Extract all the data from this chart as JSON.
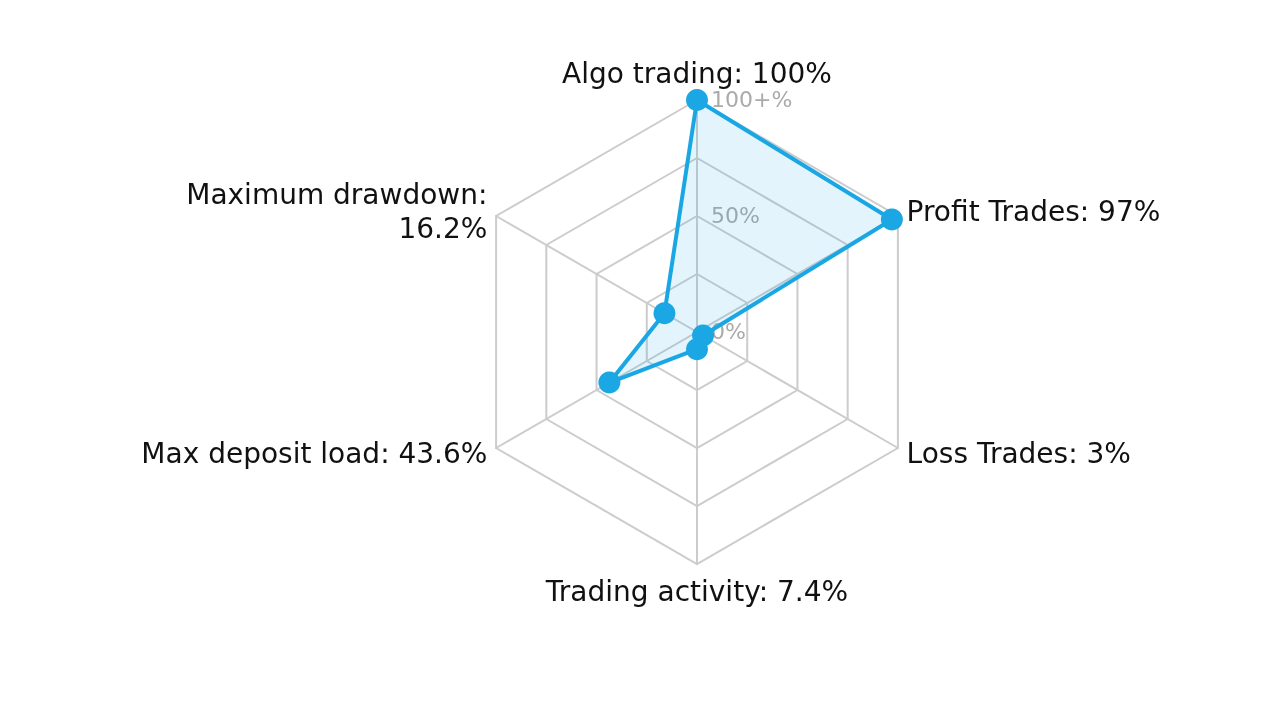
{
  "chart_data": {
    "type": "radar",
    "categories": [
      "Algo trading: 100%",
      "Profit Trades: 97%",
      "Loss Trades: 3%",
      "Trading activity: 7.4%",
      "Max deposit load: 43.6%",
      "Maximum drawdown:\n16.2%"
    ],
    "series": [
      {
        "color": "#1aa7e4",
        "values": [
          100,
          97,
          3,
          7.4,
          43.6,
          16.2
        ]
      }
    ],
    "ylim": [
      0,
      100
    ],
    "yticks": [
      {
        "value": 0,
        "label": "0%"
      },
      {
        "value": 50,
        "label": "50%"
      },
      {
        "value": 100,
        "label": "100+%"
      }
    ],
    "grid": true,
    "marker": "circle",
    "line_style": "solid"
  }
}
